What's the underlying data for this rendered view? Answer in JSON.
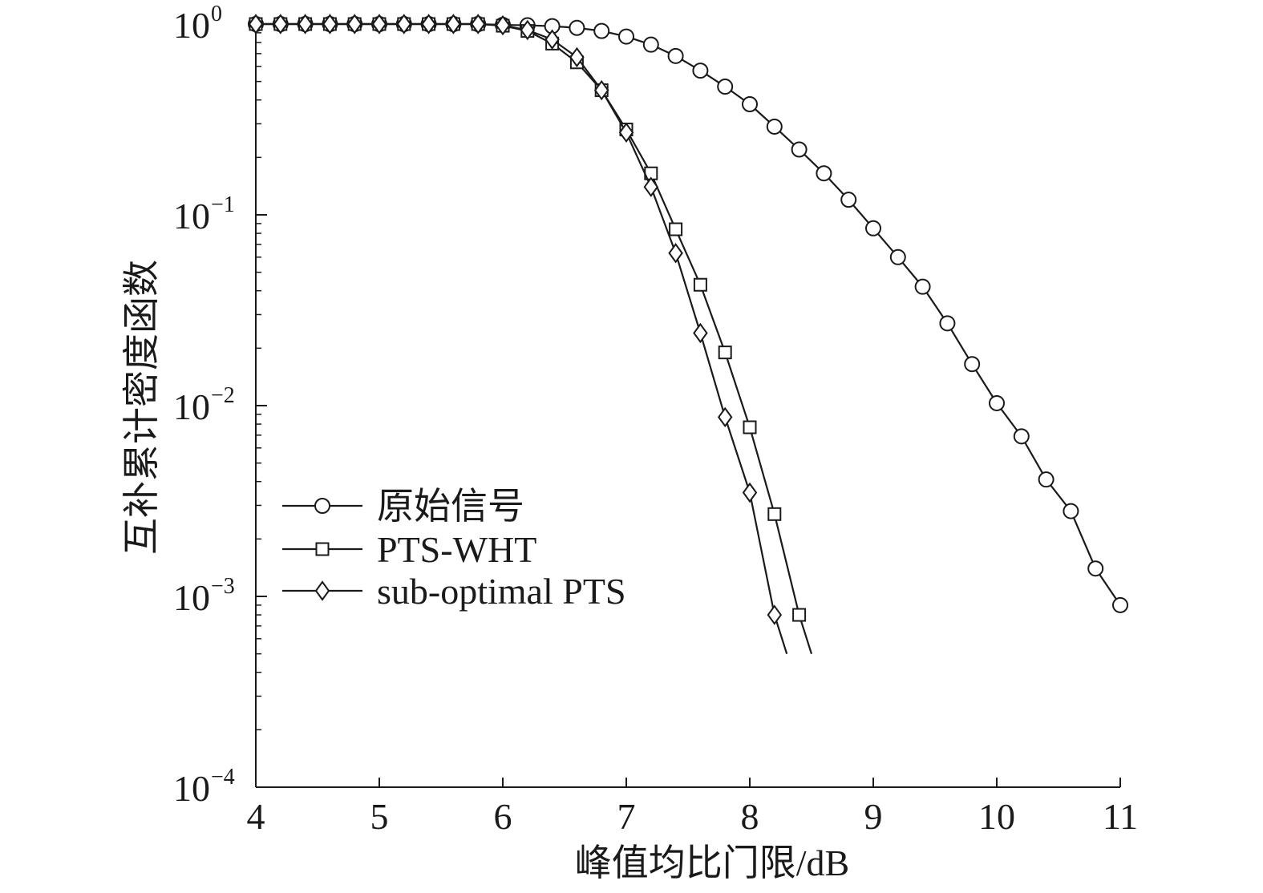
{
  "chart_data": {
    "type": "line",
    "xlabel": "峰值均比门限/dB",
    "ylabel": "互补累计密度函数",
    "yscale": "log",
    "xlim": [
      4,
      11
    ],
    "ylim": [
      0.0001,
      1
    ],
    "xticks": [
      4,
      5,
      6,
      7,
      8,
      9,
      10,
      11
    ],
    "xtick_labels": [
      "4",
      "5",
      "6",
      "7",
      "8",
      "9",
      "10",
      "11"
    ],
    "yticks": [
      {
        "value": 1,
        "base": "10",
        "exp": "0"
      },
      {
        "value": 0.1,
        "base": "10",
        "exp": "−1"
      },
      {
        "value": 0.01,
        "base": "10",
        "exp": "−2"
      },
      {
        "value": 0.001,
        "base": "10",
        "exp": "−3"
      },
      {
        "value": 0.0001,
        "base": "10",
        "exp": "−4"
      }
    ],
    "grid": false,
    "legend_position": "lower-left",
    "series": [
      {
        "name": "原始信号",
        "marker": "circle",
        "x": [
          4.0,
          4.2,
          4.4,
          4.6,
          4.8,
          5.0,
          5.2,
          5.4,
          5.6,
          5.8,
          6.0,
          6.2,
          6.4,
          6.6,
          6.8,
          7.0,
          7.2,
          7.4,
          7.6,
          7.8,
          8.0,
          8.2,
          8.4,
          8.6,
          8.8,
          9.0,
          9.2,
          9.4,
          9.6,
          9.8,
          10.0,
          10.2,
          10.4,
          10.6,
          10.8,
          11.0
        ],
        "y": [
          1.0,
          1.0,
          1.0,
          1.0,
          1.0,
          1.0,
          1.0,
          1.0,
          1.0,
          1.0,
          0.99,
          0.985,
          0.975,
          0.955,
          0.92,
          0.86,
          0.78,
          0.68,
          0.57,
          0.47,
          0.38,
          0.29,
          0.22,
          0.165,
          0.12,
          0.085,
          0.06,
          0.042,
          0.027,
          0.0165,
          0.0103,
          0.0069,
          0.0041,
          0.0028,
          0.0014,
          0.0009
        ]
      },
      {
        "name": "PTS-WHT",
        "marker": "square",
        "x": [
          4.0,
          4.2,
          4.4,
          4.6,
          4.8,
          5.0,
          5.2,
          5.4,
          5.6,
          5.8,
          6.0,
          6.2,
          6.4,
          6.6,
          6.8,
          7.0,
          7.2,
          7.4,
          7.6,
          7.8,
          8.0,
          8.2,
          8.4
        ],
        "y": [
          1.0,
          1.0,
          1.0,
          1.0,
          1.0,
          1.0,
          1.0,
          1.0,
          1.0,
          1.0,
          0.98,
          0.92,
          0.79,
          0.63,
          0.45,
          0.28,
          0.165,
          0.084,
          0.043,
          0.019,
          0.0077,
          0.0027,
          0.0008
        ],
        "line_end": [
          8.5,
          0.0005
        ]
      },
      {
        "name": "sub-optimal PTS",
        "marker": "diamond",
        "x": [
          4.0,
          4.2,
          4.4,
          4.6,
          4.8,
          5.0,
          5.2,
          5.4,
          5.6,
          5.8,
          6.0,
          6.2,
          6.4,
          6.6,
          6.8,
          7.0,
          7.2,
          7.4,
          7.6,
          7.8,
          8.0,
          8.2
        ],
        "y": [
          1.0,
          1.0,
          1.0,
          1.0,
          1.0,
          1.0,
          1.0,
          1.0,
          1.0,
          1.0,
          0.985,
          0.93,
          0.83,
          0.67,
          0.45,
          0.27,
          0.14,
          0.063,
          0.024,
          0.0087,
          0.0035,
          0.0008
        ],
        "line_end": [
          8.3,
          0.0005
        ]
      }
    ]
  }
}
